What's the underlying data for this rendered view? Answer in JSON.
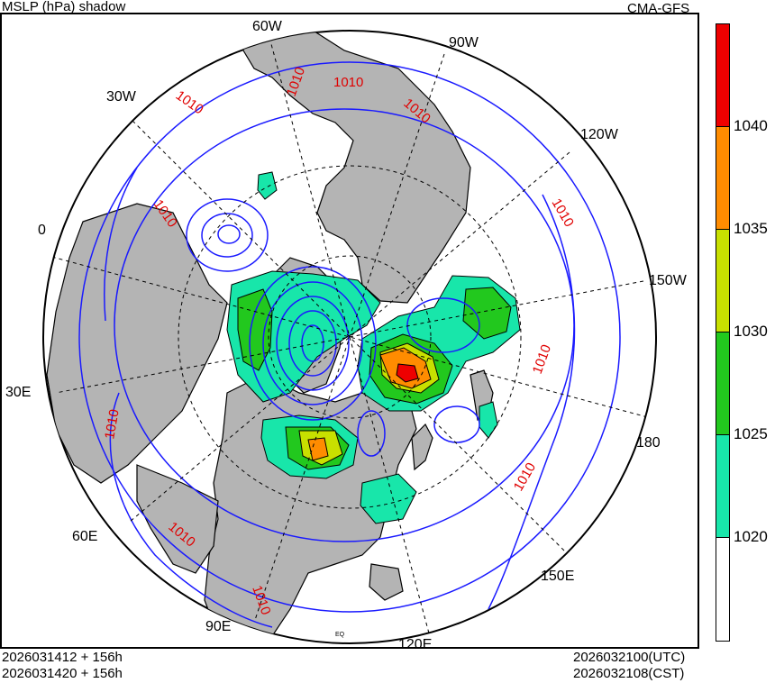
{
  "header": {
    "title": "MSLP (hPa) shadow",
    "model": "CMA-GFS"
  },
  "footer": {
    "init_utc": "2026031412 + 156h",
    "init_cst": "2026031420 + 156h",
    "valid_utc": "2026032100(UTC)",
    "valid_cst": "2026032108(CST)"
  },
  "map": {
    "projection": "north-polar-stereographic",
    "longitude_labels": {
      "w60": "60W",
      "w90": "90W",
      "w30": "30W",
      "w120": "120W",
      "zero": "0",
      "w150": "150W",
      "e30": "30E",
      "d180": "180",
      "e60": "60E",
      "e150": "150E",
      "e90": "90E",
      "e120": "120E"
    },
    "equator_label": "EQ",
    "isobar_label": "1010"
  },
  "colorbar": {
    "labels": [
      "1040",
      "1035",
      "1030",
      "1025",
      "1020"
    ],
    "colors": [
      "#ee0000",
      "#ff8c00",
      "#c8e000",
      "#22c81e",
      "#18e6aa",
      "#ffffff"
    ]
  }
}
